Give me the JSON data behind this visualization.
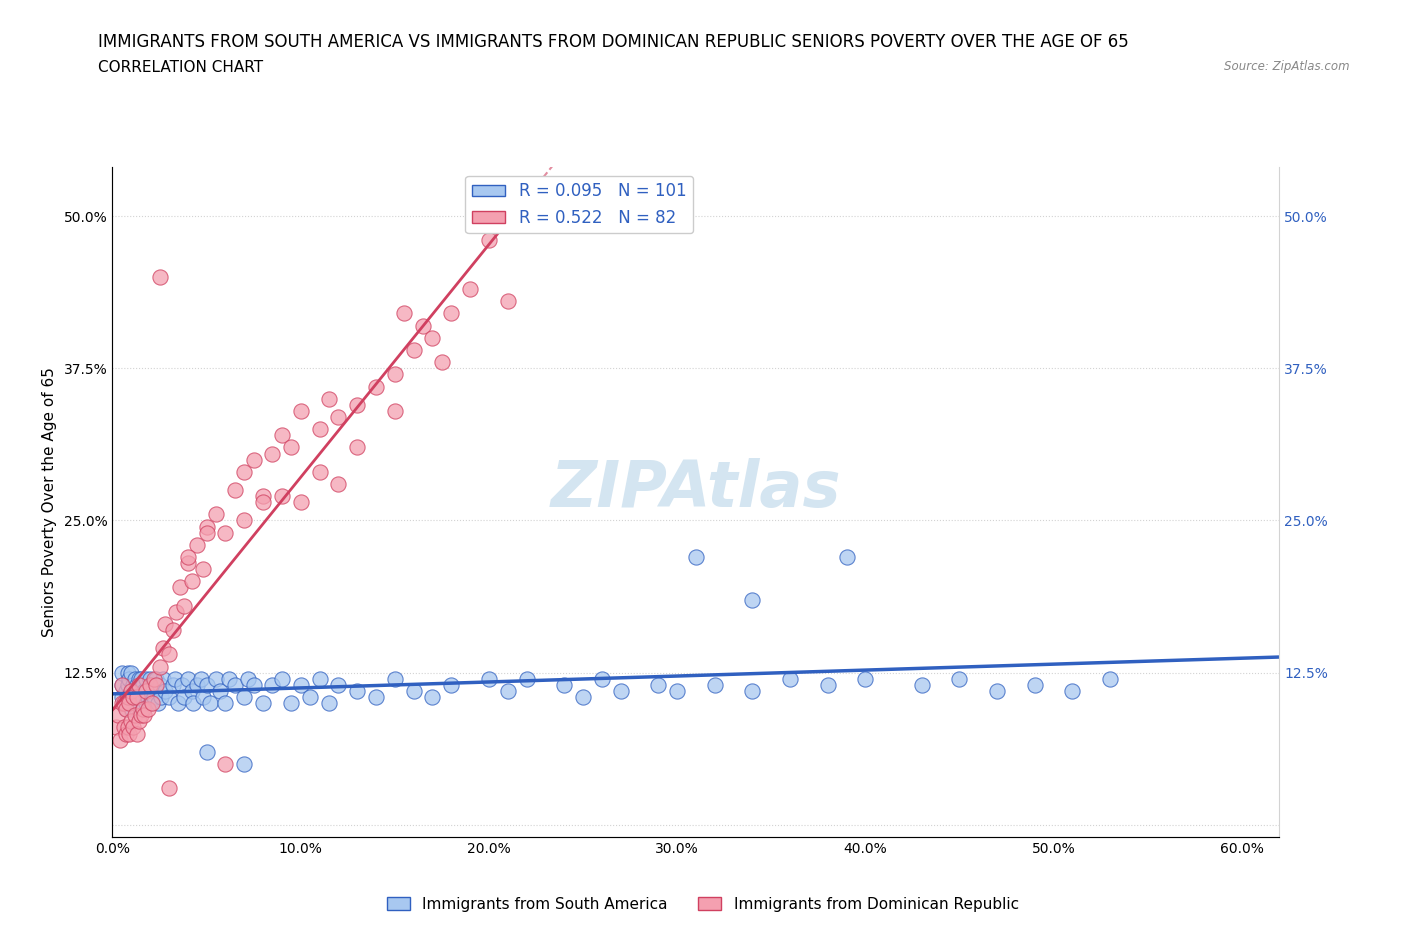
{
  "title": "IMMIGRANTS FROM SOUTH AMERICA VS IMMIGRANTS FROM DOMINICAN REPUBLIC SENIORS POVERTY OVER THE AGE OF 65",
  "subtitle": "CORRELATION CHART",
  "source": "Source: ZipAtlas.com",
  "ylabel": "Seniors Poverty Over the Age of 65",
  "xlim": [
    0.0,
    0.62
  ],
  "ylim": [
    -0.01,
    0.54
  ],
  "xticks": [
    0.0,
    0.1,
    0.2,
    0.3,
    0.4,
    0.5,
    0.6
  ],
  "xticklabels": [
    "0.0%",
    "10.0%",
    "20.0%",
    "30.0%",
    "40.0%",
    "50.0%",
    "60.0%"
  ],
  "yticks": [
    0.0,
    0.125,
    0.25,
    0.375,
    0.5
  ],
  "yticklabels": [
    "",
    "12.5%",
    "25.0%",
    "37.5%",
    "50.0%"
  ],
  "R_blue": 0.095,
  "N_blue": 101,
  "R_pink": 0.522,
  "N_pink": 82,
  "color_blue": "#a8c8f0",
  "color_pink": "#f4a0b0",
  "color_blue_line": "#3060c0",
  "color_pink_line": "#d04060",
  "legend_label_blue": "Immigrants from South America",
  "legend_label_pink": "Immigrants from Dominican Republic",
  "watermark": "ZIPAtlas",
  "watermark_color": "#b8d4e8",
  "title_fontsize": 12,
  "subtitle_fontsize": 11,
  "axis_label_fontsize": 11,
  "tick_fontsize": 10,
  "blue_scatter_x": [
    0.005,
    0.005,
    0.005,
    0.007,
    0.007,
    0.008,
    0.008,
    0.008,
    0.009,
    0.009,
    0.01,
    0.01,
    0.01,
    0.011,
    0.011,
    0.012,
    0.012,
    0.013,
    0.013,
    0.014,
    0.014,
    0.015,
    0.015,
    0.016,
    0.016,
    0.017,
    0.018,
    0.018,
    0.019,
    0.02,
    0.02,
    0.021,
    0.022,
    0.023,
    0.024,
    0.025,
    0.026,
    0.027,
    0.028,
    0.03,
    0.032,
    0.033,
    0.035,
    0.037,
    0.038,
    0.04,
    0.042,
    0.043,
    0.045,
    0.047,
    0.048,
    0.05,
    0.052,
    0.055,
    0.057,
    0.06,
    0.062,
    0.065,
    0.07,
    0.072,
    0.075,
    0.08,
    0.085,
    0.09,
    0.095,
    0.1,
    0.105,
    0.11,
    0.115,
    0.12,
    0.13,
    0.14,
    0.15,
    0.16,
    0.17,
    0.18,
    0.2,
    0.21,
    0.22,
    0.24,
    0.25,
    0.26,
    0.27,
    0.29,
    0.3,
    0.32,
    0.34,
    0.36,
    0.38,
    0.4,
    0.43,
    0.45,
    0.47,
    0.49,
    0.51,
    0.53,
    0.31,
    0.34,
    0.05,
    0.07,
    0.39
  ],
  "blue_scatter_y": [
    0.105,
    0.115,
    0.125,
    0.095,
    0.11,
    0.1,
    0.115,
    0.125,
    0.105,
    0.12,
    0.095,
    0.11,
    0.125,
    0.1,
    0.115,
    0.105,
    0.12,
    0.095,
    0.115,
    0.1,
    0.12,
    0.105,
    0.12,
    0.095,
    0.115,
    0.11,
    0.1,
    0.12,
    0.105,
    0.1,
    0.12,
    0.115,
    0.105,
    0.12,
    0.1,
    0.115,
    0.105,
    0.12,
    0.11,
    0.105,
    0.115,
    0.12,
    0.1,
    0.115,
    0.105,
    0.12,
    0.11,
    0.1,
    0.115,
    0.12,
    0.105,
    0.115,
    0.1,
    0.12,
    0.11,
    0.1,
    0.12,
    0.115,
    0.105,
    0.12,
    0.115,
    0.1,
    0.115,
    0.12,
    0.1,
    0.115,
    0.105,
    0.12,
    0.1,
    0.115,
    0.11,
    0.105,
    0.12,
    0.11,
    0.105,
    0.115,
    0.12,
    0.11,
    0.12,
    0.115,
    0.105,
    0.12,
    0.11,
    0.115,
    0.11,
    0.115,
    0.11,
    0.12,
    0.115,
    0.12,
    0.115,
    0.12,
    0.11,
    0.115,
    0.11,
    0.12,
    0.22,
    0.185,
    0.06,
    0.05,
    0.22
  ],
  "pink_scatter_x": [
    0.002,
    0.003,
    0.004,
    0.005,
    0.005,
    0.006,
    0.006,
    0.007,
    0.007,
    0.008,
    0.008,
    0.009,
    0.009,
    0.01,
    0.01,
    0.011,
    0.011,
    0.012,
    0.013,
    0.013,
    0.014,
    0.014,
    0.015,
    0.016,
    0.017,
    0.018,
    0.019,
    0.02,
    0.021,
    0.022,
    0.023,
    0.025,
    0.027,
    0.028,
    0.03,
    0.032,
    0.034,
    0.036,
    0.038,
    0.04,
    0.042,
    0.045,
    0.048,
    0.05,
    0.055,
    0.06,
    0.065,
    0.07,
    0.075,
    0.08,
    0.085,
    0.09,
    0.095,
    0.1,
    0.11,
    0.115,
    0.12,
    0.13,
    0.14,
    0.15,
    0.155,
    0.16,
    0.165,
    0.17,
    0.175,
    0.18,
    0.19,
    0.2,
    0.21,
    0.08,
    0.1,
    0.12,
    0.05,
    0.04,
    0.03,
    0.06,
    0.07,
    0.09,
    0.11,
    0.13,
    0.15,
    0.025
  ],
  "pink_scatter_y": [
    0.08,
    0.09,
    0.07,
    0.1,
    0.115,
    0.08,
    0.1,
    0.075,
    0.095,
    0.08,
    0.105,
    0.075,
    0.1,
    0.085,
    0.11,
    0.08,
    0.105,
    0.09,
    0.075,
    0.105,
    0.085,
    0.115,
    0.09,
    0.095,
    0.09,
    0.11,
    0.095,
    0.115,
    0.1,
    0.12,
    0.115,
    0.13,
    0.145,
    0.165,
    0.14,
    0.16,
    0.175,
    0.195,
    0.18,
    0.215,
    0.2,
    0.23,
    0.21,
    0.245,
    0.255,
    0.24,
    0.275,
    0.29,
    0.3,
    0.27,
    0.305,
    0.32,
    0.31,
    0.34,
    0.325,
    0.35,
    0.335,
    0.345,
    0.36,
    0.37,
    0.42,
    0.39,
    0.41,
    0.4,
    0.38,
    0.42,
    0.44,
    0.48,
    0.43,
    0.265,
    0.265,
    0.28,
    0.24,
    0.22,
    0.03,
    0.05,
    0.25,
    0.27,
    0.29,
    0.31,
    0.34,
    0.45
  ]
}
